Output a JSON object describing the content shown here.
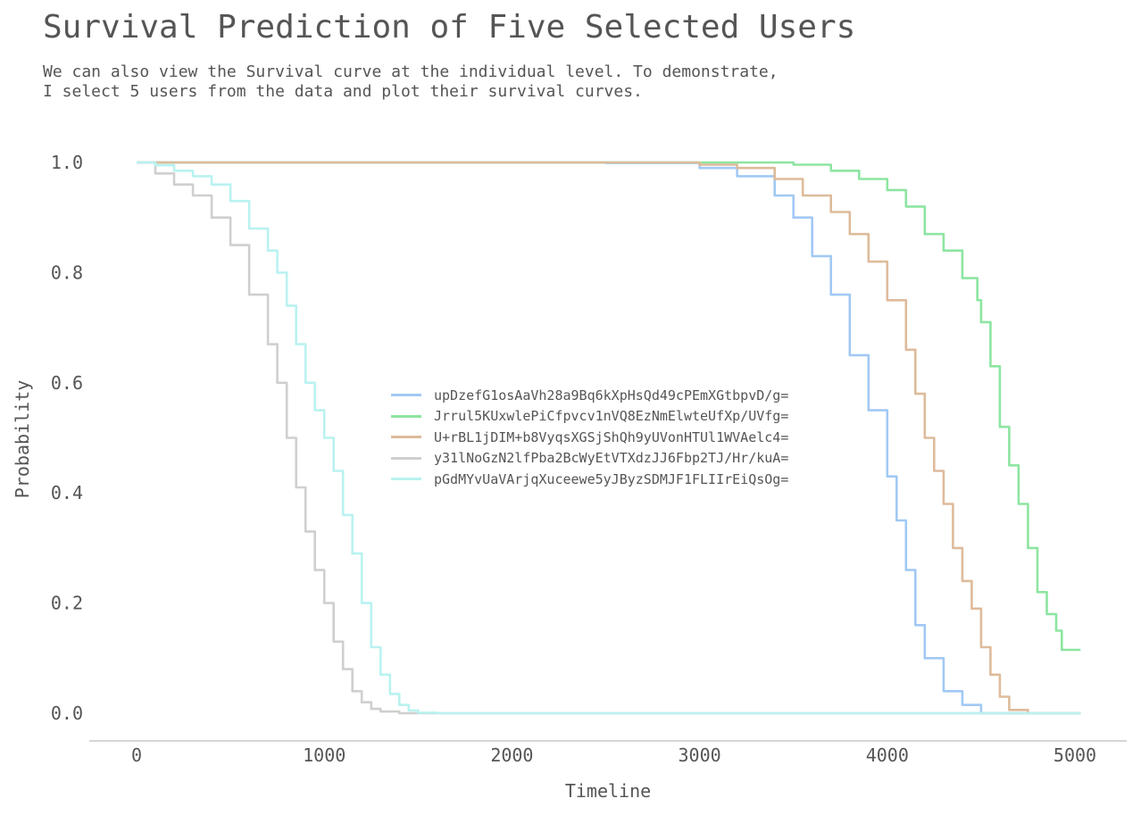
{
  "chart_data": {
    "type": "line",
    "title": "Survival Prediction of Five Selected Users",
    "subtitle": [
      "We can also view the Survival curve at the individual level. To demonstrate,",
      "I select 5 users from the data and plot their survival curves."
    ],
    "xlabel": "Timeline",
    "ylabel": "Probability",
    "xlim": [
      -250,
      5250
    ],
    "ylim": [
      -0.05,
      1.0
    ],
    "x_ticks": [
      "0",
      "1000",
      "2000",
      "3000",
      "4000",
      "5000"
    ],
    "x_tick_values": [
      0,
      1000,
      2000,
      3000,
      4000,
      5000
    ],
    "y_ticks": [
      "0.0",
      "0.2",
      "0.4",
      "0.6",
      "0.8",
      "1.0"
    ],
    "y_tick_values": [
      0.0,
      0.2,
      0.4,
      0.6,
      0.8,
      1.0
    ],
    "grid": false,
    "legend_position": "center",
    "series": [
      {
        "name": "upDzefG1osAaVh28a9Bq6kXpHsQd49cPEmXGtbpvD/g=",
        "color": "#a1c9f4",
        "points": [
          [
            0,
            1.0
          ],
          [
            2500,
            0.999
          ],
          [
            3000,
            0.99
          ],
          [
            3200,
            0.975
          ],
          [
            3400,
            0.94
          ],
          [
            3500,
            0.9
          ],
          [
            3600,
            0.83
          ],
          [
            3700,
            0.76
          ],
          [
            3800,
            0.65
          ],
          [
            3900,
            0.55
          ],
          [
            4000,
            0.43
          ],
          [
            4050,
            0.35
          ],
          [
            4100,
            0.26
          ],
          [
            4150,
            0.16
          ],
          [
            4200,
            0.1
          ],
          [
            4300,
            0.04
          ],
          [
            4400,
            0.015
          ],
          [
            4500,
            0.0
          ],
          [
            5030,
            0.0
          ]
        ]
      },
      {
        "name": "Jrrul5KUxwlePiCfpvcv1nVQ8EzNmElwteUfXp/UVfg=",
        "color": "#8de5a1",
        "points": [
          [
            0,
            1.0
          ],
          [
            3000,
            1.0
          ],
          [
            3500,
            0.996
          ],
          [
            3700,
            0.985
          ],
          [
            3850,
            0.97
          ],
          [
            4000,
            0.95
          ],
          [
            4100,
            0.92
          ],
          [
            4200,
            0.87
          ],
          [
            4300,
            0.84
          ],
          [
            4400,
            0.79
          ],
          [
            4480,
            0.75
          ],
          [
            4500,
            0.71
          ],
          [
            4550,
            0.63
          ],
          [
            4600,
            0.52
          ],
          [
            4650,
            0.45
          ],
          [
            4700,
            0.38
          ],
          [
            4750,
            0.3
          ],
          [
            4800,
            0.22
          ],
          [
            4850,
            0.18
          ],
          [
            4900,
            0.15
          ],
          [
            4920,
            0.15
          ],
          [
            4930,
            0.115
          ],
          [
            5030,
            0.115
          ]
        ]
      },
      {
        "name": "U+rBL1jDIM+b8VyqsXGSjShQh9yUVonHTUl1WVAelc4=",
        "color": "#debb9b",
        "points": [
          [
            0,
            1.0
          ],
          [
            2600,
            1.0
          ],
          [
            3000,
            0.996
          ],
          [
            3200,
            0.99
          ],
          [
            3400,
            0.97
          ],
          [
            3550,
            0.94
          ],
          [
            3700,
            0.91
          ],
          [
            3800,
            0.87
          ],
          [
            3900,
            0.82
          ],
          [
            4000,
            0.75
          ],
          [
            4100,
            0.66
          ],
          [
            4150,
            0.58
          ],
          [
            4200,
            0.5
          ],
          [
            4250,
            0.44
          ],
          [
            4300,
            0.38
          ],
          [
            4350,
            0.3
          ],
          [
            4400,
            0.24
          ],
          [
            4450,
            0.19
          ],
          [
            4500,
            0.12
          ],
          [
            4550,
            0.07
          ],
          [
            4600,
            0.03
          ],
          [
            4650,
            0.006
          ],
          [
            4750,
            0.0
          ],
          [
            5030,
            0.0
          ]
        ]
      },
      {
        "name": "y31lNoGzN2lfPba2BcWyEtVTXdzJJ6Fbp2TJ/Hr/kuA=",
        "color": "#cfcfcf",
        "points": [
          [
            0,
            1.0
          ],
          [
            100,
            0.98
          ],
          [
            200,
            0.96
          ],
          [
            300,
            0.94
          ],
          [
            400,
            0.9
          ],
          [
            500,
            0.85
          ],
          [
            600,
            0.76
          ],
          [
            700,
            0.67
          ],
          [
            750,
            0.6
          ],
          [
            800,
            0.5
          ],
          [
            850,
            0.41
          ],
          [
            900,
            0.33
          ],
          [
            950,
            0.26
          ],
          [
            1000,
            0.2
          ],
          [
            1050,
            0.13
          ],
          [
            1100,
            0.08
          ],
          [
            1150,
            0.04
          ],
          [
            1200,
            0.02
          ],
          [
            1250,
            0.008
          ],
          [
            1300,
            0.003
          ],
          [
            1400,
            0.0
          ],
          [
            5030,
            0.0
          ]
        ]
      },
      {
        "name": "pGdMYvUaVArjqXuceewe5yJByzSDMJF1FLIIrEiQsOg=",
        "color": "#b9f2f0",
        "points": [
          [
            0,
            1.0
          ],
          [
            100,
            0.995
          ],
          [
            200,
            0.985
          ],
          [
            300,
            0.975
          ],
          [
            400,
            0.96
          ],
          [
            500,
            0.93
          ],
          [
            600,
            0.88
          ],
          [
            700,
            0.84
          ],
          [
            750,
            0.8
          ],
          [
            800,
            0.74
          ],
          [
            850,
            0.67
          ],
          [
            900,
            0.6
          ],
          [
            950,
            0.55
          ],
          [
            1000,
            0.5
          ],
          [
            1050,
            0.44
          ],
          [
            1100,
            0.36
          ],
          [
            1150,
            0.29
          ],
          [
            1200,
            0.2
          ],
          [
            1250,
            0.12
          ],
          [
            1300,
            0.07
          ],
          [
            1350,
            0.035
          ],
          [
            1400,
            0.015
          ],
          [
            1450,
            0.005
          ],
          [
            1500,
            0.001
          ],
          [
            1600,
            0.0
          ],
          [
            5030,
            0.0
          ]
        ]
      }
    ]
  }
}
